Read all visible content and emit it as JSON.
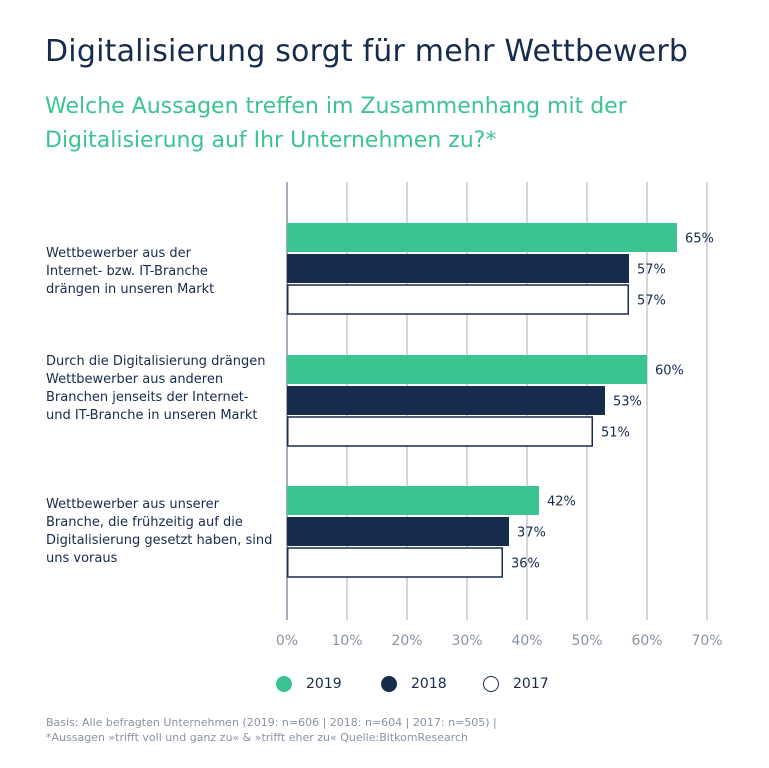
{
  "title": "Digitalisierung sorgt für mehr Wettbewerb",
  "subtitle": "Welche Aussagen treffen im Zusammenhang mit der Digitalisierung auf Ihr Unternehmen zu?*",
  "chart_data": {
    "type": "bar",
    "orientation": "horizontal",
    "categories": [
      "Wettbewerber aus der Internet- bzw. IT-Branche drängen in unseren Markt",
      "Durch die Digitalisierung drängen Wettbewerber aus anderen Branchen jenseits der Internet- und IT-Branche in unseren Markt",
      "Wettbewerber aus unserer Branche, die frühzeitig auf die Digitalisierung gesetzt haben, sind uns voraus"
    ],
    "series": [
      {
        "name": "2019",
        "values": [
          65,
          60,
          42
        ],
        "color": "#3cc490"
      },
      {
        "name": "2018",
        "values": [
          57,
          53,
          37
        ],
        "color": "#172b4d"
      },
      {
        "name": "2017",
        "values": [
          57,
          51,
          36
        ],
        "color": "#ffffff"
      }
    ],
    "data_labels": [
      [
        "65%",
        "60%",
        "42%"
      ],
      [
        "57%",
        "53%",
        "37%"
      ],
      [
        "57%",
        "51%",
        "36%"
      ]
    ],
    "xlim": [
      0,
      70
    ],
    "xticks": [
      "0%",
      "10%",
      "20%",
      "30%",
      "40%",
      "50%",
      "60%",
      "70%"
    ],
    "grid": true,
    "legend_position": "bottom"
  },
  "legend": [
    {
      "label": "2019",
      "color": "#3cc490"
    },
    {
      "label": "2018",
      "color": "#172b4d"
    },
    {
      "label": "2017",
      "color": "#ffffff"
    }
  ],
  "footnote": {
    "line1": "Basis: Alle befragten Unternehmen (2019: n=606 | 2018: n=604 | 2017: n=505) |",
    "line2": "*Aussagen »trifft voll und ganz zu« & »trifft eher zu« Quelle:BitkomResearch"
  }
}
